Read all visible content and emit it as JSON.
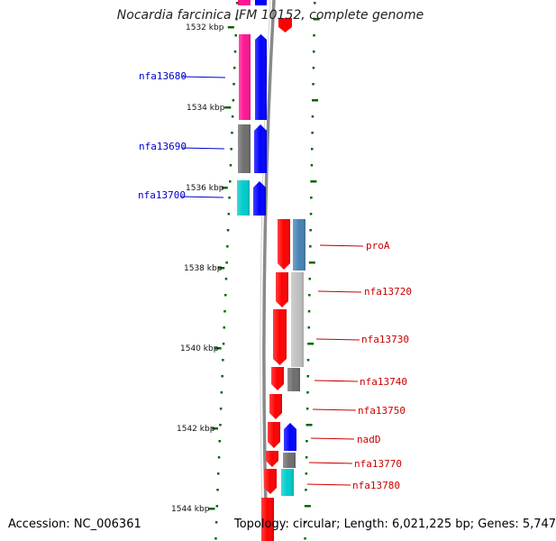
{
  "title": "Nocardia farcinica IFM 10152, complete genome",
  "footer": {
    "accession": "Accession: NC_006361",
    "summary": "Topology: circular; Length: 6,021,225 bp; Genes: 5,747"
  },
  "ticks": [
    "1532 kbp",
    "1534 kbp",
    "1536 kbp",
    "1538 kbp",
    "1540 kbp",
    "1542 kbp",
    "1544 kbp"
  ],
  "left_labels": [
    "nfa13680",
    "nfa13690",
    "nfa13700"
  ],
  "right_labels": [
    "proA",
    "nfa13720",
    "nfa13730",
    "nfa13740",
    "nfa13750",
    "nadD",
    "nfa13770",
    "nfa13780"
  ],
  "colors": {
    "magenta": "#ff1493",
    "blue": "#0000ff",
    "gray": "#6e6e6e",
    "cyan": "#00cccc",
    "red": "#ff0000",
    "steel": "#4682b4",
    "silver": "#c0c0c0",
    "tick": "#006400",
    "left_text": "#0000cc",
    "right_text": "#cc0000",
    "backbone": "#808080"
  }
}
